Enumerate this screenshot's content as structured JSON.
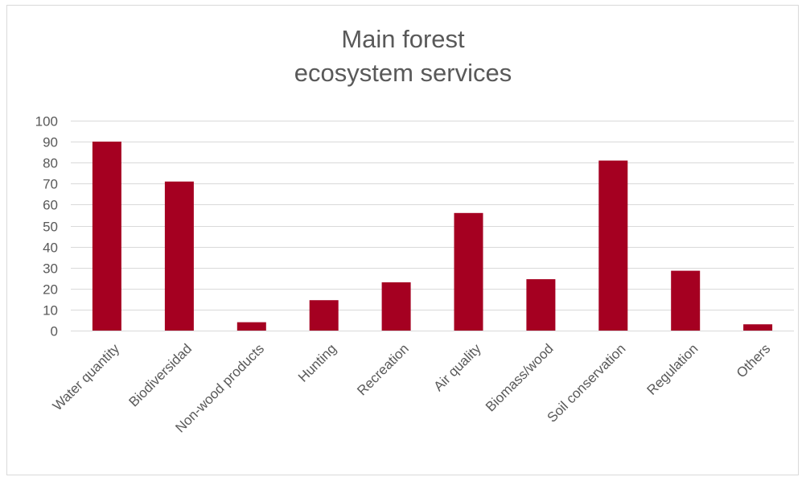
{
  "chart_data": {
    "type": "bar",
    "title_lines": [
      "Main forest",
      "ecosystem services"
    ],
    "categories": [
      "Water quantity",
      "Biodiversidad",
      "Non-wood products",
      "Hunting",
      "Recreation",
      "Air quality",
      "Biomass/wood",
      "Soil conservation",
      "Regulation",
      "Others"
    ],
    "values": [
      90,
      71,
      4,
      14.5,
      23,
      56,
      24.5,
      81,
      28.5,
      3
    ],
    "ylim": [
      0,
      100
    ],
    "yticks": [
      0,
      10,
      20,
      30,
      40,
      50,
      60,
      70,
      80,
      90,
      100
    ],
    "xlabel": "",
    "ylabel": "",
    "grid": true,
    "legend": "none",
    "bar_color": "#a50021",
    "grid_color": "#d9d9d9",
    "text_color": "#595959"
  }
}
